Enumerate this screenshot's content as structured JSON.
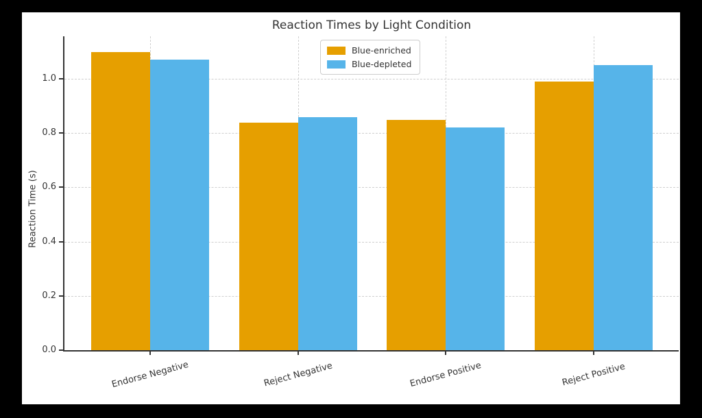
{
  "chart_data": {
    "type": "bar",
    "title": "Reaction Times by Light Condition",
    "xlabel": "",
    "ylabel": "Reaction Time (s)",
    "categories": [
      "Endorse Negative",
      "Reject Negative",
      "Endorse Positive",
      "Reject Positive"
    ],
    "series": [
      {
        "name": "Blue-enriched",
        "color": "#E69F00",
        "values": [
          1.1,
          0.84,
          0.85,
          0.99
        ]
      },
      {
        "name": "Blue-depleted",
        "color": "#56B4E9",
        "values": [
          1.07,
          0.86,
          0.82,
          1.05
        ]
      }
    ],
    "ylim": [
      0,
      1.157
    ],
    "yticks": [
      0.0,
      0.2,
      0.4,
      0.6,
      0.8,
      1.0
    ],
    "grid": true,
    "grid_style": "dashed",
    "legend_position": "upper center",
    "colors": {
      "background": "#ffffff",
      "outer_frame": "#000000",
      "spine": "#333333",
      "grid": "#cfcfcf",
      "text": "#333333"
    }
  }
}
